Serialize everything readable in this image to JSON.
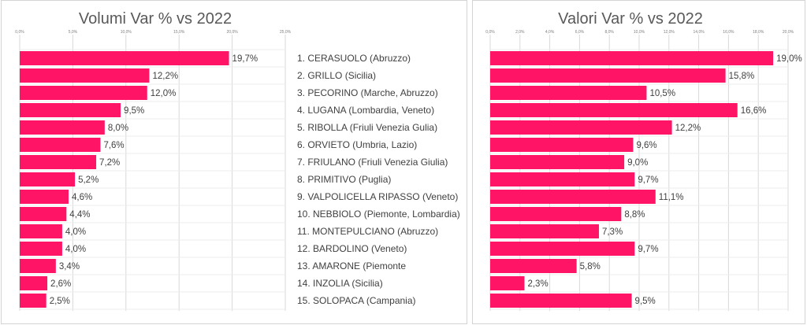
{
  "colors": {
    "bar": "#ff1466",
    "grid": "#d9d9d9",
    "text": "#404040"
  },
  "chart_data": [
    {
      "type": "bar",
      "orientation": "horizontal",
      "title": "Volumi Var % vs 2022",
      "xlim": [
        0,
        25
      ],
      "xticks": [
        "0,0%",
        "5,0%",
        "10,0%",
        "15,0%",
        "20,0%",
        "25,0%"
      ],
      "categories": [
        "1. CERASUOLO (Abruzzo)",
        "2. GRILLO (Sicilia)",
        "3. PECORINO (Marche, Abruzzo)",
        "4. LUGANA (Lombardia, Veneto)",
        "5. RIBOLLA (Friuli Venezia Gulia)",
        "6. ORVIETO (Umbria, Lazio)",
        "7. FRIULANO (Friuli Venezia Giulia)",
        "8. PRIMITIVO (Puglia)",
        "9. VALPOLICELLA RIPASSO (Veneto)",
        "10. NEBBIOLO (Piemonte, Lombardia)",
        "11. MONTEPULCIANO (Abruzzo)",
        "12. BARDOLINO (Veneto)",
        "13. AMARONE (Piemonte",
        "14. INZOLIA (Sicilia)",
        "15. SOLOPACA (Campania)"
      ],
      "values": [
        19.7,
        12.2,
        12.0,
        9.5,
        8.0,
        7.6,
        7.2,
        5.2,
        4.6,
        4.4,
        4.0,
        4.0,
        3.4,
        2.6,
        2.5
      ],
      "labels": [
        "19,7%",
        "12,2%",
        "12,0%",
        "9,5%",
        "8,0%",
        "7,6%",
        "7,2%",
        "5,2%",
        "4,6%",
        "4,4%",
        "4,0%",
        "4,0%",
        "3,4%",
        "2,6%",
        "2,5%"
      ],
      "grid": true
    },
    {
      "type": "bar",
      "orientation": "horizontal",
      "title": "Valori Var % vs 2022",
      "xlim": [
        0,
        20
      ],
      "xticks": [
        "0,0%",
        "2,0%",
        "4,0%",
        "6,0%",
        "8,0%",
        "10,0%",
        "12,0%",
        "14,0%",
        "16,0%",
        "18,0%",
        "20,0%"
      ],
      "values": [
        19.0,
        15.8,
        10.5,
        16.6,
        12.2,
        9.6,
        9.0,
        9.7,
        11.1,
        8.8,
        7.3,
        9.7,
        5.8,
        2.3,
        9.5
      ],
      "labels": [
        "19,0%",
        "15,8%",
        "10,5%",
        "16,6%",
        "12,2%",
        "9,6%",
        "9,0%",
        "9,7%",
        "11,1%",
        "8,8%",
        "7,3%",
        "9,7%",
        "5,8%",
        "2,3%",
        "9,5%"
      ],
      "grid": true
    }
  ]
}
